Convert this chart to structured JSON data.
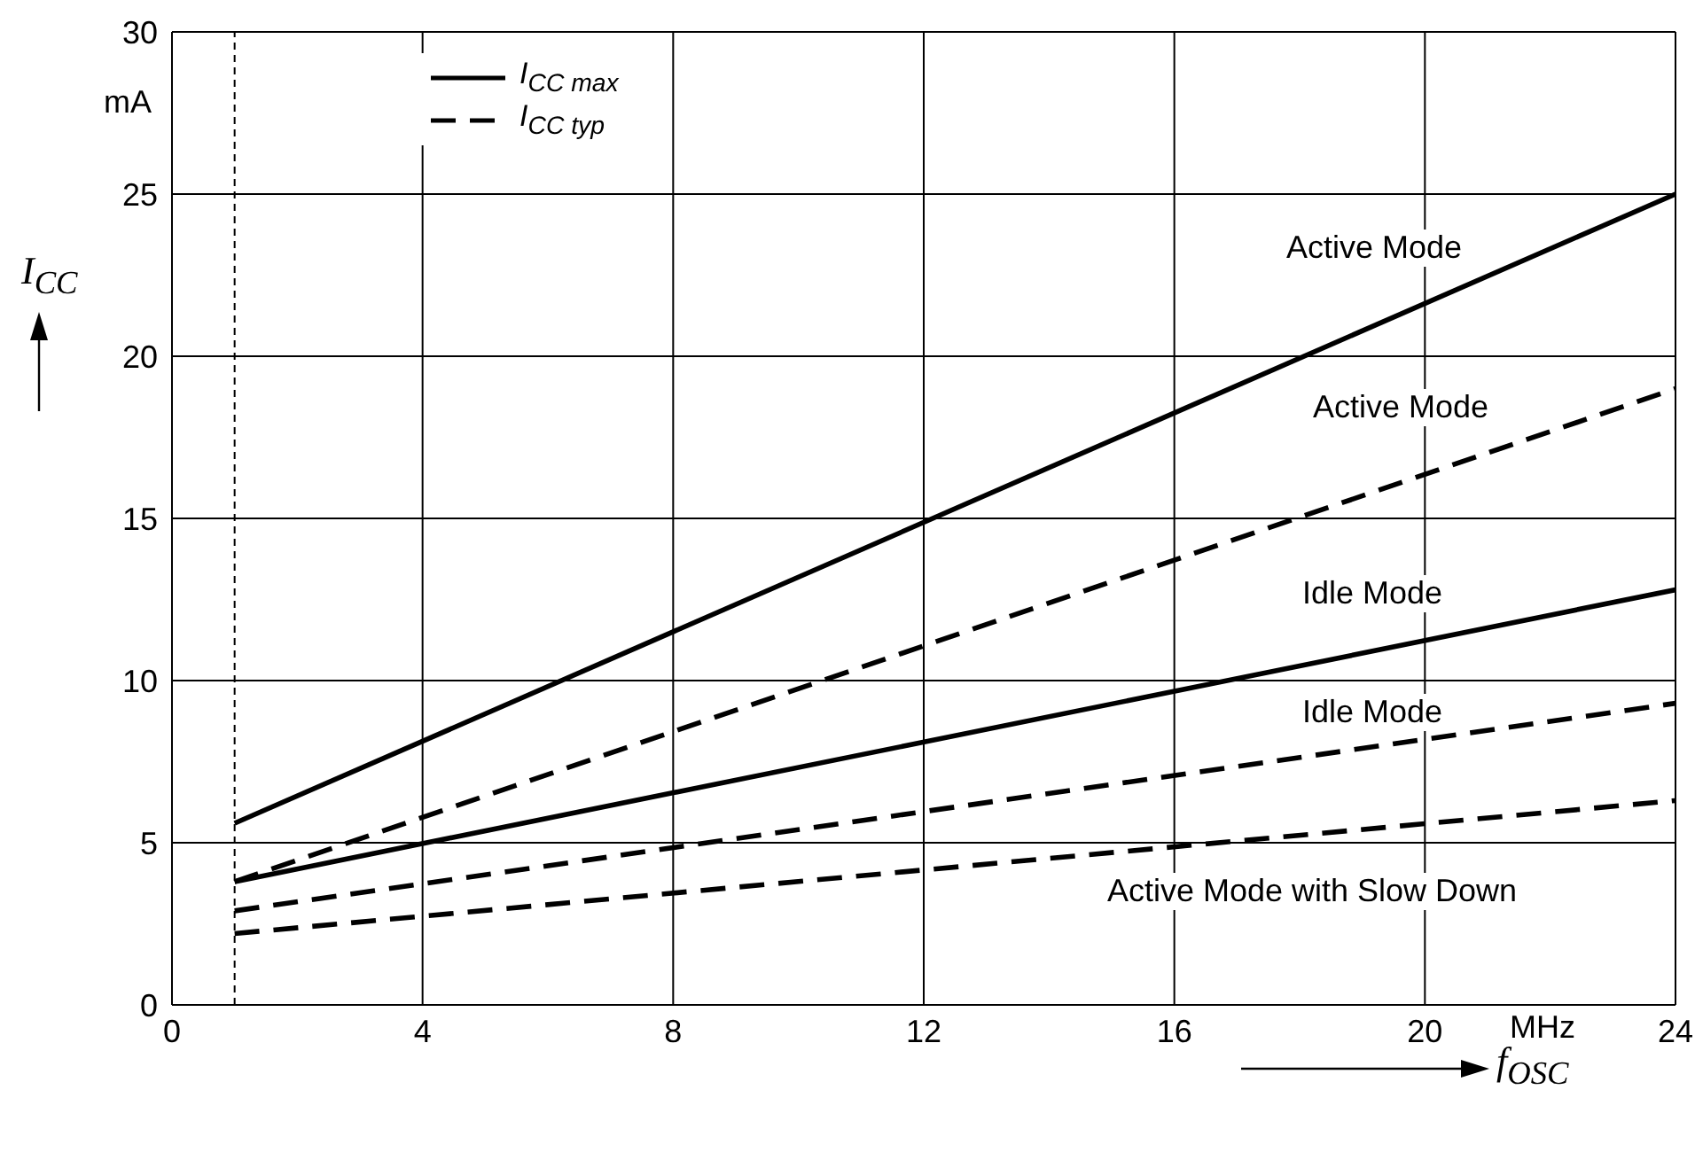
{
  "chart_data": {
    "type": "line",
    "xlabel": "f$_{OSC}$",
    "ylabel": "I$_{CC}$",
    "x": [
      1,
      24
    ],
    "series": [
      {
        "name": "I$_{CC max}$",
        "color": "#000000",
        "line_style": "solid",
        "values": [
          5.6,
          25.0
        ]
      },
      {
        "name": "I$_{CC typ}$",
        "color": "#000000",
        "line_style": "dashed",
        "values": [
          3.8,
          19.0
        ]
      },
      {
        "color": "#000000",
        "line_style": "solid",
        "values": [
          3.8,
          12.8
        ]
      },
      {
        "color": "#000000",
        "line_style": "dashed",
        "values": [
          2.9,
          9.3
        ]
      },
      {
        "color": "#000000",
        "line_style": "dashed",
        "values": [
          2.2,
          6.3
        ]
      }
    ],
    "xlim": [
      0,
      24
    ],
    "xticks": [
      0,
      4,
      8,
      12,
      16,
      20,
      24
    ],
    "ylim": [
      0,
      30
    ],
    "yticks": [
      0,
      5,
      10,
      15,
      20,
      25,
      30
    ],
    "grid": true,
    "legend": "top left",
    "marker": "none",
    "ref_lines": [
      {
        "axis": "x",
        "value": 1,
        "line_style": "dashed",
        "color": "#000000"
      }
    ],
    "annotations": [
      "mA",
      "MHz",
      "Active Mode",
      "Active Mode",
      "Idle Mode",
      "Idle Mode",
      "Active Mode with Slow Down"
    ]
  }
}
